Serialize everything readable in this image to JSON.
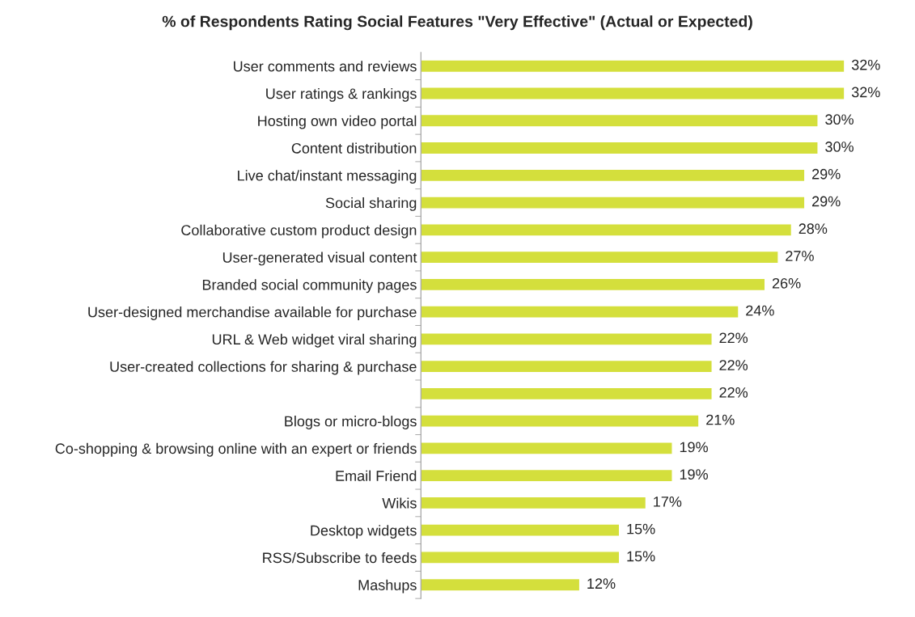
{
  "chart_data": {
    "type": "bar",
    "orientation": "horizontal",
    "title": "% of Respondents Rating Social Features \"Very Effective\" (Actual or Expected)",
    "categories": [
      "User comments and reviews",
      "User ratings & rankings",
      "Hosting own video portal",
      "Content distribution",
      "Live chat/instant messaging",
      "Social sharing",
      "Collaborative custom product design",
      "User-generated visual content",
      "Branded social community pages",
      "User-designed merchandise available for purchase",
      "URL & Web widget viral sharing",
      "User-created collections for sharing & purchase",
      null,
      "Blogs or micro-blogs",
      "Co-shopping & browsing online with an expert or friends",
      "Email Friend",
      "Wikis",
      "Desktop widgets",
      "RSS/Subscribe to feeds",
      "Mashups"
    ],
    "values": [
      32,
      32,
      30,
      30,
      29,
      29,
      28,
      27,
      26,
      24,
      22,
      22,
      22,
      21,
      19,
      19,
      17,
      15,
      15,
      12
    ],
    "value_labels": [
      "32%",
      "32%",
      "30%",
      "30%",
      "29%",
      "29%",
      "28%",
      "27%",
      "26%",
      "24%",
      "22%",
      "22%",
      "22%",
      "21%",
      "19%",
      "19%",
      "17%",
      "15%",
      "15%",
      "12%"
    ],
    "color": "#d4df3c",
    "grid": false,
    "legend": false
  }
}
